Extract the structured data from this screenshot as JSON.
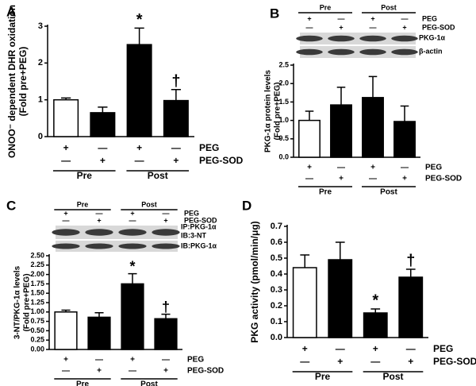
{
  "chart_data": [
    {
      "type": "bar",
      "panel": "A",
      "ylabel": [
        "ONOO⁻ dependent DHR oxidation",
        "(Fold pre+PEG)"
      ],
      "values": [
        1.0,
        0.65,
        2.5,
        0.98
      ],
      "errors": [
        0.05,
        0.15,
        0.45,
        0.3
      ],
      "colors": [
        "#ffffff",
        "#000000",
        "#000000",
        "#000000"
      ],
      "annotations": [
        null,
        null,
        "*",
        "†"
      ],
      "ylim": [
        0,
        3
      ],
      "yticks": [
        0,
        1,
        2,
        3
      ],
      "peg": [
        "+",
        "—",
        "+",
        "—"
      ],
      "peg_sod": [
        "—",
        "+",
        "—",
        "+"
      ],
      "row_labels": [
        "PEG",
        "PEG-SOD"
      ],
      "groups": [
        "Pre",
        "Post"
      ]
    },
    {
      "type": "bar",
      "panel": "B",
      "ylabel": [
        "PKG-1α protein levels",
        "(Fold pre+PEG)"
      ],
      "values": [
        1.0,
        1.42,
        1.62,
        0.97
      ],
      "errors": [
        0.25,
        0.48,
        0.57,
        0.42
      ],
      "colors": [
        "#ffffff",
        "#000000",
        "#000000",
        "#000000"
      ],
      "ylim": [
        0,
        2.5
      ],
      "yticks": [
        {
          "value": 0,
          "label": "0.0"
        },
        0.5,
        {
          "value": 1,
          "label": "1.0"
        },
        1.5,
        {
          "value": 2,
          "label": "2.0"
        },
        2.5
      ],
      "peg": [
        "+",
        "—",
        "+",
        "—"
      ],
      "peg_sod": [
        "—",
        "+",
        "—",
        "+"
      ],
      "row_labels": [
        "PEG",
        "PEG-SOD"
      ],
      "groups": [
        "Pre",
        "Post"
      ],
      "blot_labels": [
        "PKG-1α",
        "β-actin"
      ]
    },
    {
      "type": "bar",
      "panel": "C",
      "ylabel": [
        "3-NT/PKG-1α levels",
        "(Fold pre+PEG)"
      ],
      "values": [
        1.0,
        0.86,
        1.75,
        0.82
      ],
      "errors": [
        0.05,
        0.12,
        0.27,
        0.12
      ],
      "colors": [
        "#ffffff",
        "#000000",
        "#000000",
        "#000000"
      ],
      "annotations": [
        null,
        null,
        "*",
        "†"
      ],
      "ylim": [
        0,
        2.5
      ],
      "yticks": [
        {
          "value": 0,
          "label": "0.00"
        },
        0.25,
        {
          "value": 0.5,
          "label": "0.50"
        },
        0.75,
        {
          "value": 1,
          "label": "1.00"
        },
        1.25,
        {
          "value": 1.5,
          "label": "1.50"
        },
        1.75,
        {
          "value": 2,
          "label": "2.00"
        },
        2.25,
        {
          "value": 2.5,
          "label": "2.50"
        }
      ],
      "peg": [
        "+",
        "—",
        "+",
        "—"
      ],
      "peg_sod": [
        "—",
        "+",
        "—",
        "+"
      ],
      "row_labels": [
        "PEG",
        "PEG-SOD"
      ],
      "groups": [
        "Pre",
        "Post"
      ],
      "blot_labels": [
        "IP:PKG-1α",
        "IB:3-NT",
        "IB:PKG-1α"
      ]
    },
    {
      "type": "bar",
      "panel": "D",
      "ylabel": [
        "PKG activity (pmol/min/μg)"
      ],
      "values": [
        0.44,
        0.49,
        0.155,
        0.38
      ],
      "errors": [
        0.08,
        0.11,
        0.025,
        0.05
      ],
      "colors": [
        "#ffffff",
        "#000000",
        "#000000",
        "#000000"
      ],
      "annotations": [
        null,
        null,
        "*",
        "†"
      ],
      "ylim": [
        0,
        0.7
      ],
      "yticks": [
        {
          "value": 0,
          "label": "0.0"
        },
        0.1,
        0.2,
        0.3,
        0.4,
        0.5,
        0.6,
        0.7
      ],
      "peg": [
        "+",
        "—",
        "+",
        "—"
      ],
      "peg_sod": [
        "—",
        "+",
        "—",
        "+"
      ],
      "row_labels": [
        "PEG",
        "PEG-SOD"
      ],
      "groups": [
        "Pre",
        "Post"
      ]
    }
  ]
}
